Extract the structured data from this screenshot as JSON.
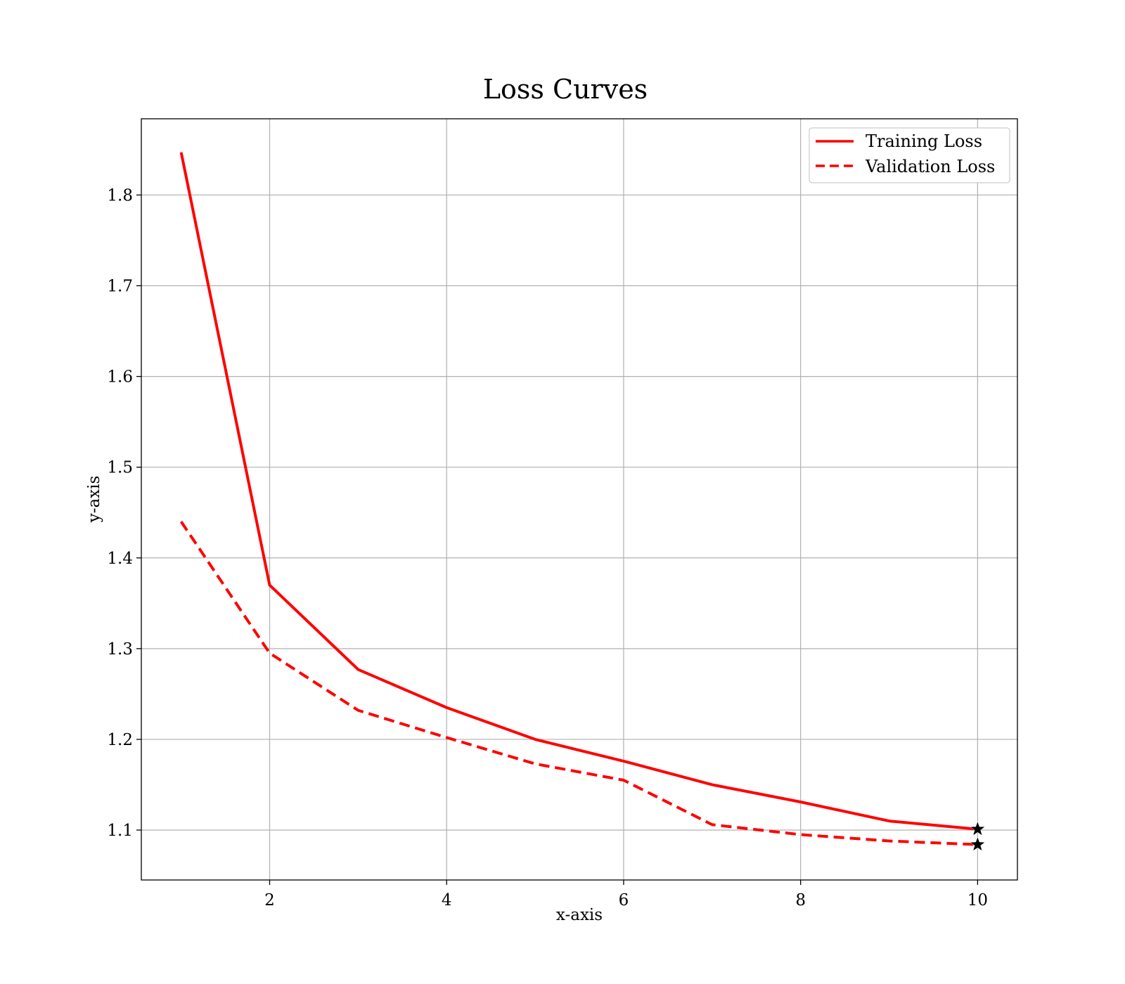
{
  "chart_data": {
    "type": "line",
    "title": "Loss Curves",
    "xlabel": "x-axis",
    "ylabel": "y-axis",
    "xlim": [
      0.55,
      10.45
    ],
    "ylim": [
      1.045,
      1.884
    ],
    "x_ticks": [
      2,
      4,
      6,
      8,
      10
    ],
    "y_ticks": [
      1.1,
      1.2,
      1.3,
      1.4,
      1.5,
      1.6,
      1.7,
      1.8
    ],
    "grid": true,
    "legend_position": "top-right",
    "x": [
      1,
      2,
      3,
      4,
      5,
      6,
      7,
      8,
      9,
      10
    ],
    "series": [
      {
        "name": "Training Loss",
        "style": "solid",
        "color": "#ff0000",
        "values": [
          1.847,
          1.37,
          1.277,
          1.235,
          1.2,
          1.176,
          1.15,
          1.131,
          1.11,
          1.101
        ]
      },
      {
        "name": "Validation Loss",
        "style": "dashed",
        "color": "#ff0000",
        "values": [
          1.44,
          1.295,
          1.232,
          1.202,
          1.173,
          1.155,
          1.106,
          1.095,
          1.088,
          1.084
        ]
      }
    ],
    "end_marker": "star",
    "end_marker_color": "#000000"
  }
}
